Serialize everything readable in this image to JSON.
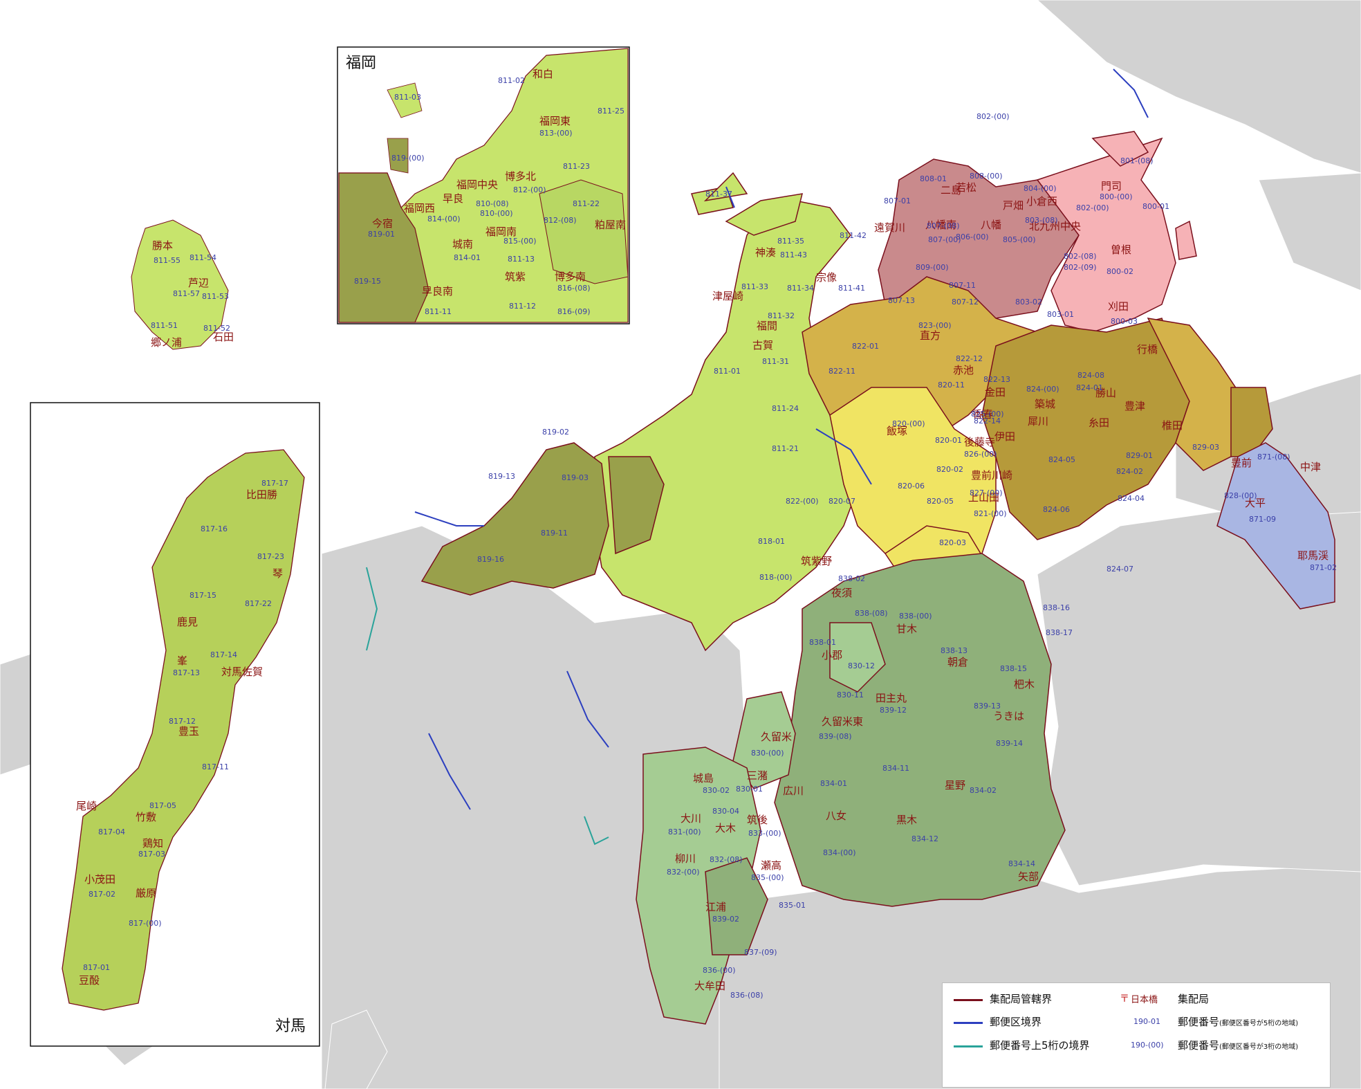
{
  "colors": {
    "other_region": "#d2d2d2",
    "fukuoka_area": "#c7e46c",
    "western": "#99a04b",
    "kitakyushu_dark": "#c98a8c",
    "kitakyushu_light": "#f6b2b6",
    "chikuho": "#d4b24a",
    "iizuka": "#f0e463",
    "tagawa": "#b69a3a",
    "kurume": "#8fb07a",
    "chikugo_light": "#a5cc93",
    "buzen_blue": "#a9b6e3",
    "tsushima": "#b6d05a",
    "boundary_office": "#7a0f1c",
    "boundary_district": "#2c3fbf",
    "boundary_5digit": "#2aa39a"
  },
  "insets": {
    "fukuoka_title": "福岡",
    "tsushima_title": "対馬"
  },
  "legend": {
    "office_boundary": "集配局管轄界",
    "district_boundary": "郵便区境界",
    "upper5_boundary": "郵便番号上5桁の境界",
    "office_example": "日本橋",
    "office_label": "集配局",
    "code5_example": "190-01",
    "code5_label": "郵便番号",
    "code5_note": "(郵便区番号が5桁の地域)",
    "code3_example": "190-(00)",
    "code3_label": "郵便番号",
    "code3_note": "(郵便区番号が3桁の地域)"
  },
  "offices": [
    "和白",
    "福岡東",
    "博多北",
    "福岡中央",
    "早良",
    "今宿",
    "福岡西",
    "城南",
    "福岡南",
    "筑紫",
    "博多南",
    "早良南",
    "粕屋南",
    "勝本",
    "芦辺",
    "郷ノ浦",
    "石田",
    "比田勝",
    "鹿見",
    "琴",
    "峯",
    "対馬佐賀",
    "豊玉",
    "尾崎",
    "竹敷",
    "鶏知",
    "小茂田",
    "厳原",
    "豆酘",
    "若松",
    "二島",
    "戸畑",
    "小倉西",
    "門司",
    "八幡",
    "八幡南",
    "北九州中央",
    "遠賀川",
    "宗像",
    "曽根",
    "刈田",
    "直方",
    "行橋",
    "津屋崎",
    "福間",
    "古賀",
    "赤池",
    "金田",
    "勝山",
    "豊津",
    "築城",
    "香春",
    "糸田",
    "犀川",
    "椎田",
    "伊田",
    "後藤寺",
    "飯塚",
    "豊前川崎",
    "上山田",
    "豊前",
    "中津",
    "大平",
    "耶馬渓",
    "筑紫野",
    "夜須",
    "甘木",
    "小郡",
    "朝倉",
    "杷木",
    "田主丸",
    "うきは",
    "久留米東",
    "久留米",
    "城島",
    "三潴",
    "広川",
    "八女",
    "星野",
    "黒木",
    "大川",
    "大木",
    "筑後",
    "柳川",
    "瀬高",
    "矢部",
    "江浦",
    "大牟田",
    "神湊"
  ],
  "codes": [
    "811-02",
    "811-25",
    "813-(00)",
    "811-23",
    "812-(00)",
    "811-22",
    "812-(08)",
    "811-03",
    "819-(00)",
    "819-01",
    "814-(00)",
    "814-01",
    "815-(00)",
    "811-13",
    "816-(08)",
    "816-(09)",
    "811-11",
    "811-12",
    "819-15",
    "810-(08)",
    "810-(00)",
    "811-55",
    "811-54",
    "811-57",
    "811-53",
    "811-51",
    "811-52",
    "817-17",
    "817-16",
    "817-23",
    "817-15",
    "817-22",
    "817-14",
    "817-13",
    "817-12",
    "817-11",
    "817-05",
    "817-04",
    "817-03",
    "817-02",
    "817-(00)",
    "817-01",
    "802-(00)",
    "801-(08)",
    "800-(00)",
    "800-01",
    "808-01",
    "808-(00)",
    "804-(00)",
    "802-(00)",
    "807-01",
    "807-(08)",
    "806-(00)",
    "805-(00)",
    "803-(08)",
    "802-(08)",
    "802-(09)",
    "800-02",
    "807-(00)",
    "809-(00)",
    "807-11",
    "807-12",
    "807-13",
    "803-02",
    "803-01",
    "800-03",
    "811-37",
    "811-35",
    "811-42",
    "811-43",
    "811-34",
    "811-41",
    "811-33",
    "811-32",
    "811-31",
    "811-01",
    "811-24",
    "811-21",
    "822-(00)",
    "823-(00)",
    "822-01",
    "822-11",
    "822-12",
    "822-13",
    "822-14",
    "824-(00)",
    "824-08",
    "824-01",
    "829-01",
    "829-03",
    "824-02",
    "824-04",
    "824-05",
    "824-06",
    "824-07",
    "825-(00)",
    "826-(00)",
    "827-(00)",
    "821-(00)",
    "820-(00)",
    "820-07",
    "820-06",
    "820-05",
    "820-02",
    "820-01",
    "820-11",
    "820-03",
    "828-(00)",
    "871-(08)",
    "871-09",
    "871-02",
    "818-01",
    "818-(00)",
    "838-02",
    "838-(08)",
    "838-(00)",
    "838-16",
    "838-17",
    "838-01",
    "838-13",
    "838-15",
    "830-12",
    "830-11",
    "839-12",
    "839-13",
    "839-14",
    "839-(08)",
    "830-(00)",
    "834-01",
    "834-11",
    "834-02",
    "834-12",
    "834-14",
    "834-(00)",
    "830-02",
    "830-01",
    "830-04",
    "831-(00)",
    "833-(00)",
    "832-(08)",
    "832-(00)",
    "835-(00)",
    "835-01",
    "839-02",
    "837-(09)",
    "836-(00)",
    "836-(08)",
    "819-02",
    "819-13",
    "819-03",
    "819-11",
    "819-16"
  ]
}
